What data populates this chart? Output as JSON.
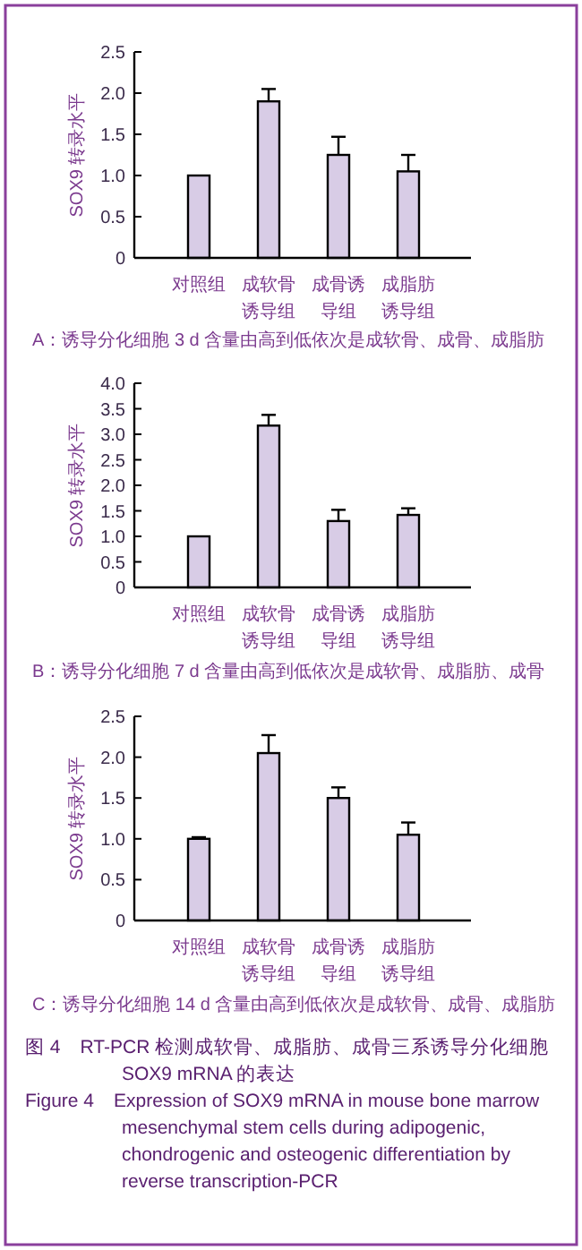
{
  "chart_data": [
    {
      "type": "bar",
      "ylabel": "SOX9 转录水平",
      "categories": [
        "对照组",
        "成软骨诱导组",
        "成骨诱导组",
        "成脂肪诱导组"
      ],
      "color": "#d8cce6",
      "values": [
        1.0,
        1.9,
        1.25,
        1.05
      ],
      "errors": [
        null,
        0.15,
        0.22,
        0.2
      ],
      "ylim": [
        0,
        2.5
      ],
      "yticks": [
        {
          "value": 0,
          "label": "0"
        },
        {
          "value": 0.5,
          "label": "0.5"
        },
        {
          "value": 1,
          "label": "1.0"
        },
        {
          "value": 1.5,
          "label": "1.5"
        },
        {
          "value": 2,
          "label": "2.0"
        },
        {
          "value": 2.5,
          "label": "2.5"
        }
      ],
      "annotations": [
        "A：诱导分化细胞 3 d 含量由高到低依次是成软骨、成骨、成脂肪"
      ]
    },
    {
      "type": "bar",
      "ylabel": "SOX9 转录水平",
      "categories": [
        "对照组",
        "成软骨诱导组",
        "成骨诱导组",
        "成脂肪诱导组"
      ],
      "color": "#d8cce6",
      "values": [
        1.0,
        3.17,
        1.3,
        1.42
      ],
      "errors": [
        null,
        0.21,
        0.22,
        0.13
      ],
      "ylim": [
        0,
        4
      ],
      "yticks": [
        {
          "value": 0,
          "label": "0"
        },
        {
          "value": 0.5,
          "label": "0.5"
        },
        {
          "value": 1,
          "label": "1.0"
        },
        {
          "value": 1.5,
          "label": "1.5"
        },
        {
          "value": 2,
          "label": "2.0"
        },
        {
          "value": 2.5,
          "label": "2.5"
        },
        {
          "value": 3,
          "label": "3.0"
        },
        {
          "value": 3.5,
          "label": "3.5"
        },
        {
          "value": 4,
          "label": "4.0"
        }
      ],
      "annotations": [
        "B：诱导分化细胞 7 d 含量由高到低依次是成软骨、成脂肪、成骨"
      ]
    },
    {
      "type": "bar",
      "ylabel": "SOX9 转录水平",
      "categories": [
        "对照组",
        "成软骨诱导组",
        "成骨诱导组",
        "成脂肪诱导组"
      ],
      "color": "#d8cce6",
      "values": [
        1.0,
        2.05,
        1.5,
        1.05
      ],
      "errors": [
        0.02,
        0.22,
        0.13,
        0.15
      ],
      "ylim": [
        0,
        2.5
      ],
      "yticks": [
        {
          "value": 0,
          "label": "0"
        },
        {
          "value": 0.5,
          "label": "0.5"
        },
        {
          "value": 1,
          "label": "1.0"
        },
        {
          "value": 1.5,
          "label": "1.5"
        },
        {
          "value": 2,
          "label": "2.0"
        },
        {
          "value": 2.5,
          "label": "2.5"
        }
      ],
      "annotations": [
        "C：诱导分化细胞 14 d 含量由高到低依次是成软骨、成骨、成脂肪",
        "图 4　RT-PCR 检测成软骨、成脂肪、成骨三系诱导分化细胞 SOX9 mRNA 的表达",
        "Figure 4　Expression of SOX9 mRNA in mouse bone marrow mesenchymal stem cells during adipogenic, chondrogenic and osteogenic differentiation by reverse transcription-PCR"
      ]
    }
  ]
}
